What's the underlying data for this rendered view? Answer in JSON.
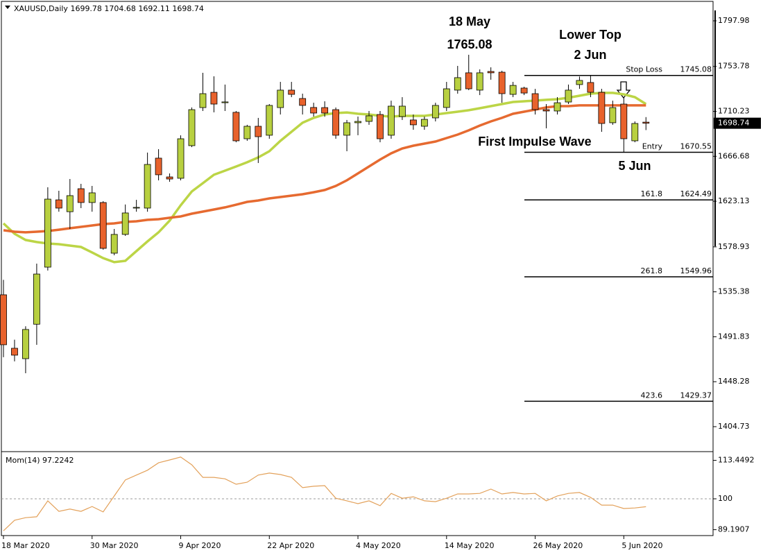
{
  "chart_data": [
    {
      "type": "candlestick",
      "title": "XAUUSD,Daily  1699.78 1704.68 1692.11 1698.74",
      "categories": [
        "18 Mar 2020",
        null,
        null,
        null,
        null,
        null,
        null,
        null,
        "30 Mar 2020",
        null,
        null,
        null,
        null,
        null,
        null,
        null,
        "9 Apr 2020",
        null,
        null,
        null,
        null,
        null,
        null,
        null,
        "22 Apr 2020",
        null,
        null,
        null,
        null,
        null,
        null,
        null,
        "4 May 2020",
        null,
        null,
        null,
        null,
        null,
        null,
        null,
        "14 May 2020",
        null,
        null,
        null,
        null,
        null,
        null,
        null,
        "26 May 2020",
        null,
        null,
        null,
        null,
        null,
        null,
        null,
        "5 Jun 2020",
        null,
        null
      ],
      "open": [
        1532.5,
        1480.7,
        1470.6,
        1504.0,
        1559.3,
        1624.5,
        1613.0,
        1635.3,
        1621.9,
        1621.9,
        1572.8,
        1591.0,
        1616.5,
        1616.5,
        1664.9,
        1646.7,
        1645.4,
        1677.0,
        1713.9,
        1728.7,
        1718.6,
        1709.3,
        1683.7,
        1695.8,
        1687.1,
        1713.9,
        1730.8,
        1722.7,
        1714.0,
        1713.9,
        1711.9,
        1687.1,
        1699.2,
        1700.5,
        1707.2,
        1687.1,
        1705.2,
        1701.9,
        1695.8,
        1703.9,
        1714.0,
        1730.8,
        1747.6,
        1730.8,
        1748.9,
        1748.2,
        1726.7,
        1732.8,
        1727.4,
        1711.9,
        1710.6,
        1719.3,
        1736.2,
        1738.2,
        1728.7,
        1699.2,
        1717.3,
        1681.7,
        1699.78
      ],
      "high": [
        1547.0,
        1489.0,
        1502.0,
        1562.7,
        1636.7,
        1633.3,
        1644.7,
        1640.0,
        1638.0,
        1623.2,
        1596.3,
        1620.0,
        1624.5,
        1670.3,
        1673.6,
        1650.1,
        1687.0,
        1714.0,
        1747.6,
        1744.2,
        1736.2,
        1710.6,
        1697.2,
        1703.9,
        1717.3,
        1738.8,
        1738.8,
        1727.4,
        1718.6,
        1720.0,
        1714.0,
        1701.9,
        1705.2,
        1710.6,
        1710.6,
        1720.6,
        1724.0,
        1707.2,
        1705.2,
        1718.6,
        1738.8,
        1754.3,
        1765.08,
        1750.9,
        1752.9,
        1749.6,
        1738.8,
        1734.1,
        1732.0,
        1717.3,
        1724.0,
        1736.2,
        1744.0,
        1745.08,
        1732.1,
        1720.6,
        1724.0,
        1700.5,
        1704.68
      ],
      "low": [
        1472.0,
        1468.0,
        1456.5,
        1484.0,
        1556.0,
        1613.0,
        1596.3,
        1616.5,
        1613.0,
        1576.2,
        1570.8,
        1589.6,
        1613.0,
        1613.0,
        1643.4,
        1642.0,
        1643.4,
        1675.6,
        1710.6,
        1709.3,
        1710.6,
        1680.3,
        1681.7,
        1660.2,
        1683.7,
        1707.2,
        1724.0,
        1707.2,
        1705.2,
        1705.0,
        1683.7,
        1671.6,
        1687.1,
        1697.2,
        1680.3,
        1683.7,
        1701.9,
        1692.4,
        1692.4,
        1700.5,
        1710.6,
        1727.4,
        1730.8,
        1726.0,
        1740.9,
        1718.6,
        1724.0,
        1726.0,
        1707.2,
        1693.8,
        1707.2,
        1717.3,
        1732.1,
        1724.0,
        1690.4,
        1697.2,
        1670.55,
        1680.3,
        1692.11
      ],
      "close": [
        1484.1,
        1474.0,
        1498.9,
        1552.6,
        1625.2,
        1616.5,
        1628.6,
        1621.9,
        1631.3,
        1577.5,
        1591.0,
        1611.8,
        1617.2,
        1658.8,
        1648.8,
        1644.7,
        1683.7,
        1711.9,
        1727.4,
        1717.3,
        1719.4,
        1681.7,
        1695.8,
        1685.7,
        1716.0,
        1730.8,
        1726.7,
        1716.0,
        1708.6,
        1708.6,
        1687.1,
        1699.2,
        1700.5,
        1705.9,
        1683.7,
        1715.3,
        1715.3,
        1697.2,
        1702.5,
        1716.0,
        1732.1,
        1742.9,
        1732.1,
        1747.6,
        1747.6,
        1727.4,
        1735.4,
        1728.0,
        1712.0,
        1710.6,
        1718.6,
        1730.8,
        1740.2,
        1728.7,
        1698.5,
        1713.9,
        1683.7,
        1698.5,
        1698.74
      ],
      "up_color": "#b8d040",
      "down_color": "#e8622c",
      "overlays": [
        {
          "color": "#bcd546",
          "values": [
            1601.7,
            1591.6,
            1585.6,
            1583.6,
            1582.2,
            1581.5,
            1580.2,
            1578.8,
            1573.5,
            1568.1,
            1564.1,
            1565.4,
            1574.8,
            1584.2,
            1593.0,
            1604.4,
            1619.2,
            1632.6,
            1640.7,
            1648.8,
            1652.8,
            1656.8,
            1660.9,
            1665.6,
            1671.6,
            1681.7,
            1690.4,
            1699.2,
            1703.9,
            1707.2,
            1708.6,
            1709.2,
            1707.9,
            1707.2,
            1705.9,
            1705.2,
            1705.9,
            1705.9,
            1705.9,
            1707.2,
            1708.6,
            1709.9,
            1711.3,
            1713.3,
            1715.3,
            1717.3,
            1719.3,
            1720.0,
            1720.7,
            1721.4,
            1722.0,
            1723.4,
            1725.4,
            1727.4,
            1728.1,
            1728.1,
            1726.7,
            1724.0,
            1717.3
          ]
        },
        {
          "color": "#e66a30",
          "values": [
            1595.0,
            1593.6,
            1593.0,
            1593.6,
            1594.3,
            1595.6,
            1597.0,
            1598.3,
            1599.7,
            1601.0,
            1601.7,
            1603.1,
            1603.7,
            1605.1,
            1605.7,
            1607.1,
            1608.4,
            1611.1,
            1613.1,
            1615.1,
            1617.2,
            1619.8,
            1622.5,
            1623.9,
            1625.9,
            1627.2,
            1628.6,
            1629.9,
            1631.9,
            1634.0,
            1638.0,
            1643.4,
            1650.1,
            1656.8,
            1663.5,
            1669.6,
            1674.3,
            1677.0,
            1679.0,
            1681.0,
            1684.4,
            1687.7,
            1691.8,
            1696.5,
            1700.5,
            1703.9,
            1707.9,
            1709.9,
            1711.9,
            1714.0,
            1715.3,
            1715.3,
            1716.0,
            1716.0,
            1716.0,
            1716.0,
            1716.0,
            1716.0,
            1716.0
          ]
        }
      ],
      "levels": [
        {
          "label": "Stop Loss",
          "value": 1745.08
        },
        {
          "label": "Entry",
          "value": 1670.55
        },
        {
          "label": "161.8",
          "value": 1624.49
        },
        {
          "label": "261.8",
          "value": 1549.96
        },
        {
          "label": "423.6",
          "value": 1429.37
        }
      ],
      "annotations": [
        "18 May",
        "1765.08",
        "Lower Top",
        "2 Jun",
        "First Impulse Wave",
        "5 Jun"
      ],
      "current_price": 1698.74,
      "ylim": [
        1381.2,
        1808.06
      ],
      "yticks": [
        1797.98,
        1753.78,
        1710.23,
        1666.68,
        1623.13,
        1578.93,
        1535.38,
        1491.83,
        1448.28,
        1404.73
      ]
    },
    {
      "type": "line",
      "title": "Mom(14) 97.2242",
      "color": "#e3a15a",
      "values": [
        88.8,
        92.5,
        93.4,
        93.7,
        99.3,
        95.6,
        96.4,
        95.6,
        97.3,
        95.4,
        101.0,
        106.6,
        108.3,
        110.0,
        112.6,
        113.6,
        114.6,
        111.9,
        107.5,
        107.5,
        107.0,
        105.1,
        105.8,
        108.3,
        109.0,
        108.5,
        107.5,
        103.9,
        104.4,
        104.6,
        100.2,
        99.3,
        98.3,
        99.3,
        97.6,
        101.9,
        100.2,
        100.7,
        99.3,
        99.0,
        100.2,
        101.7,
        101.7,
        101.9,
        103.4,
        101.7,
        102.2,
        101.7,
        101.9,
        99.3,
        101.0,
        101.9,
        102.2,
        100.5,
        97.8,
        97.8,
        96.6,
        96.8,
        97.2242
      ],
      "reference_line": 100,
      "ylim": [
        87.62,
        116.26
      ],
      "yticks": [
        113.4492,
        100,
        89.1907
      ]
    }
  ]
}
